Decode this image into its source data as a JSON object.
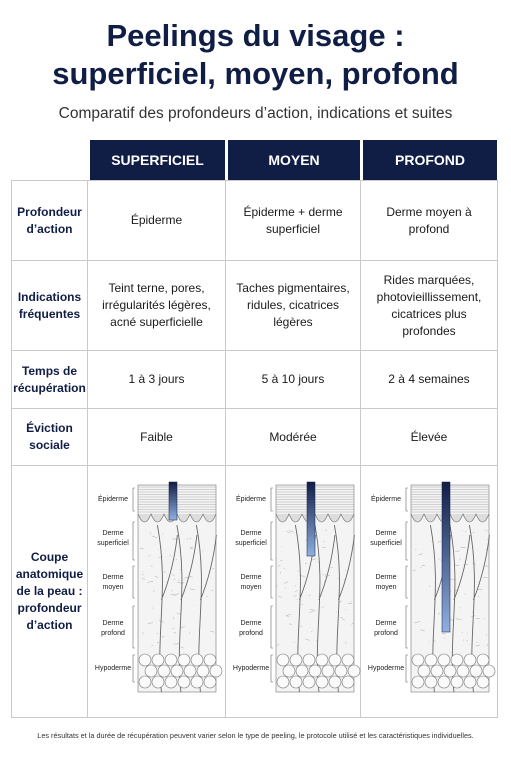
{
  "title": [
    "Peelings du visage :",
    "superficiel, moyen, profond"
  ],
  "subtitle": "Comparatif des profondeurs d’action, indications et suites",
  "table": {
    "columns": [
      "SUPERFICIEL",
      "MOYEN",
      "PROFOND"
    ],
    "rows": [
      {
        "label": "Profondeur d’action",
        "cells": [
          "Épiderme",
          "Épiderme + derme superficiel",
          "Derme moyen à profond"
        ]
      },
      {
        "label": "Indications fréquentes",
        "cells": [
          "Teint terne, pores, irrégularités légères, acné superficielle",
          "Taches pigmentaires, ridules, cicatrices légères",
          "Rides marquées, photovieillissement, cicatrices plus profondes"
        ]
      },
      {
        "label": "Temps de récupération",
        "cells": [
          "1 à 3 jours",
          "5 à 10 jours",
          "2 à 4 semaines"
        ]
      },
      {
        "label": "Éviction sociale",
        "cells": [
          "Faible",
          "Modérée",
          "Élevée"
        ]
      },
      {
        "label": "Coupe anatomique de la peau : profondeur d’action"
      }
    ]
  },
  "layers": [
    "Épiderme",
    "Derme superficiel",
    "Derme moyen",
    "Derme profond",
    "Hypoderme"
  ],
  "footnote": "Les résultats et la durée de récupération peuvent varier selon le type de peeling, le protocole utilisé et les caractéristiques individuelles."
}
